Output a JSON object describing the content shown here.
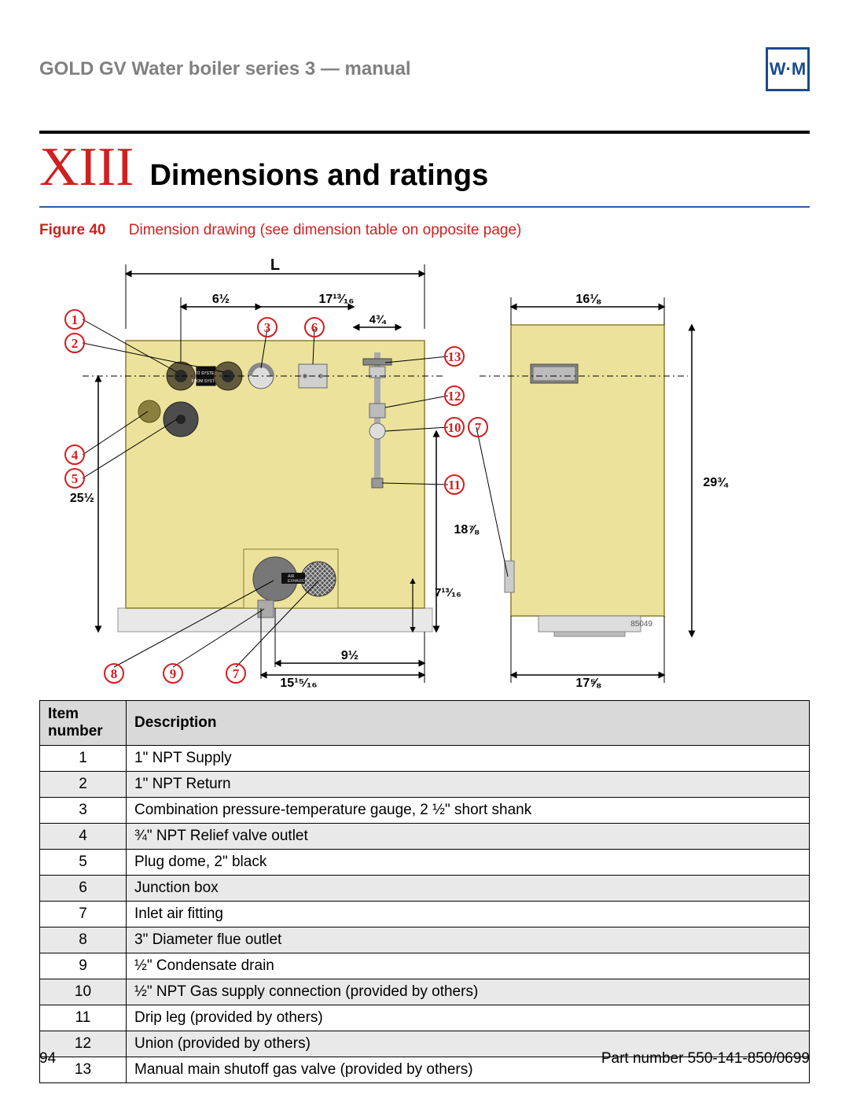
{
  "header": {
    "manual_title": "GOLD GV Water boiler series 3 — manual",
    "logo_text": "W·M"
  },
  "section": {
    "roman": "XIII",
    "title": "Dimensions and ratings"
  },
  "figure": {
    "label": "Figure 40",
    "caption": "Dimension drawing (see dimension table on opposite page)",
    "drawing_ref": "85049",
    "colors": {
      "boiler_fill": "#ece29c",
      "boiler_stroke": "#b2a24a",
      "base_fill": "#e8e8e8",
      "callout_circle": "#d21f1f",
      "dimension_line": "#000000",
      "dashed_line": "#000000"
    },
    "dimensions": {
      "top_L": "L",
      "d_6_5": "6½",
      "d_17_13_16": "17¹³⁄₁₆",
      "d_4_75": "4¾",
      "d_16_125": "16⅛",
      "d_29_75": "29¾",
      "d_25_5": "25½",
      "d_18_875": "18⅞",
      "d_7_13_16": "7¹³⁄₁₆",
      "d_9_5": "9½",
      "d_15_15_16": "15¹⁵⁄₁₆",
      "d_17_625": "17⅝"
    },
    "callouts": [
      "1",
      "2",
      "3",
      "4",
      "5",
      "6",
      "7",
      "8",
      "9",
      "10",
      "11",
      "12",
      "13"
    ],
    "labels": {
      "to_system": "TO SYSTEM",
      "from_system": "FROM SYSTEM",
      "air": "AIR",
      "exhaust": "EXHAUST"
    }
  },
  "table": {
    "headers": {
      "col1": "Item number",
      "col2": "Description"
    },
    "rows": [
      {
        "num": "1",
        "desc": "1\" NPT Supply"
      },
      {
        "num": "2",
        "desc": "1\" NPT Return"
      },
      {
        "num": "3",
        "desc": "Combination pressure-temperature gauge, 2 ½\" short shank"
      },
      {
        "num": "4",
        "desc": "¾\" NPT Relief valve outlet"
      },
      {
        "num": "5",
        "desc": "Plug dome, 2\" black"
      },
      {
        "num": "6",
        "desc": "Junction box"
      },
      {
        "num": "7",
        "desc": "Inlet air fitting"
      },
      {
        "num": "8",
        "desc": "3\" Diameter flue outlet"
      },
      {
        "num": "9",
        "desc": "½\" Condensate drain"
      },
      {
        "num": "10",
        "desc": "½\" NPT Gas supply connection (provided by others)"
      },
      {
        "num": "11",
        "desc": "Drip leg (provided by others)"
      },
      {
        "num": "12",
        "desc": "Union (provided by others)"
      },
      {
        "num": "13",
        "desc": "Manual main shutoff gas valve (provided by others)"
      }
    ]
  },
  "footer": {
    "page_number": "94",
    "part_number": "Part number 550-141-850/0699"
  }
}
